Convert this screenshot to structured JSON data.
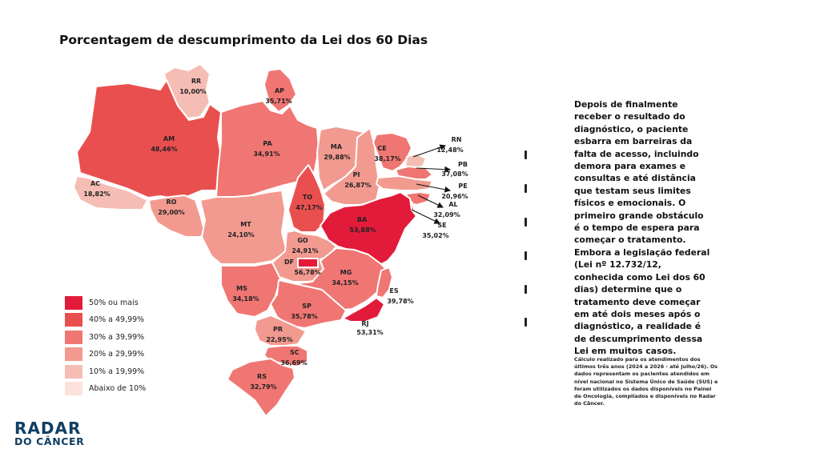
{
  "title": "Porcentagem de descumprimento da Lei dos 60 Dias",
  "colors": {
    "cat50": "#e31b3b",
    "cat40": "#ea4f4f",
    "cat30": "#ef7672",
    "cat20": "#f29a90",
    "cat10": "#f6bdb5",
    "cat0": "#fbe2dd"
  },
  "legend": [
    {
      "label": "50% ou mais",
      "color": "#e31b3b"
    },
    {
      "label": "40% a 49,99%",
      "color": "#ea4f4f"
    },
    {
      "label": "30% a 39,99%",
      "color": "#ef7672"
    },
    {
      "label": "20% a 29,99%",
      "color": "#f29a90"
    },
    {
      "label": "10% a 19,99%",
      "color": "#f6bdb5"
    },
    {
      "label": "Abaixo de 10%",
      "color": "#fbe2dd"
    }
  ],
  "states": [
    {
      "code": "RR",
      "value": "10,00%",
      "color": "#f6bdb5"
    },
    {
      "code": "AP",
      "value": "35,71%",
      "color": "#ef7672"
    },
    {
      "code": "AM",
      "value": "48,46%",
      "color": "#ea4f4f"
    },
    {
      "code": "PA",
      "value": "34,91%",
      "color": "#ef7672"
    },
    {
      "code": "AC",
      "value": "18,82%",
      "color": "#f6bdb5"
    },
    {
      "code": "RO",
      "value": "29,00%",
      "color": "#f29a90"
    },
    {
      "code": "MT",
      "value": "24,10%",
      "color": "#f29a90"
    },
    {
      "code": "TO",
      "value": "47,17%",
      "color": "#ea4f4f"
    },
    {
      "code": "MA",
      "value": "29,88%",
      "color": "#f29a90"
    },
    {
      "code": "PI",
      "value": "26,87%",
      "color": "#f29a90"
    },
    {
      "code": "CE",
      "value": "38,17%",
      "color": "#ef7672"
    },
    {
      "code": "RN",
      "value": "12,48%",
      "color": "#f6bdb5"
    },
    {
      "code": "PB",
      "value": "37,08%",
      "color": "#ef7672"
    },
    {
      "code": "PE",
      "value": "20,96%",
      "color": "#f29a90"
    },
    {
      "code": "AL",
      "value": "32,09%",
      "color": "#ef7672"
    },
    {
      "code": "SE",
      "value": "35,02%",
      "color": "#ef7672"
    },
    {
      "code": "BA",
      "value": "53,88%",
      "color": "#e31b3b"
    },
    {
      "code": "GO",
      "value": "24,91%",
      "color": "#f29a90"
    },
    {
      "code": "DF",
      "value": "56,78%",
      "color": "#e31b3b"
    },
    {
      "code": "MG",
      "value": "34,15%",
      "color": "#ef7672"
    },
    {
      "code": "ES",
      "value": "39,78%",
      "color": "#ef7672"
    },
    {
      "code": "RJ",
      "value": "53,31%",
      "color": "#e31b3b"
    },
    {
      "code": "MS",
      "value": "34,18%",
      "color": "#ef7672"
    },
    {
      "code": "SP",
      "value": "35,78%",
      "color": "#ef7672"
    },
    {
      "code": "PR",
      "value": "22,95%",
      "color": "#f29a90"
    },
    {
      "code": "SC",
      "value": "36,69%",
      "color": "#ef7672"
    },
    {
      "code": "RS",
      "value": "32,79%",
      "color": "#ef7672"
    }
  ],
  "body_text": "Depois de finalmente receber o resultado do diagnóstico, o paciente esbarra em barreiras da falta de acesso, incluindo demora para exames e consultas e até distância que testam seus limites físicos e emocionais. O primeiro grande obstáculo é o tempo de espera para começar o tratamento. Embora a legislação federal (Lei nº 12.732/12, conhecida como Lei dos 60 dias) determine que o tratamento deve começar em até dois meses após o diagnóstico, a realidade é de descumprimento dessa Lei em muitos casos.",
  "footnote": "Cálculo realizado para os atendimentos dos últimos três anos (2024 a 2026 - até julho/26). Os dados representam os pacientes atendidos em nível nacional no Sistema Único de Saúde (SUS) e foram utilizados os dados disponíveis no Painel de Oncologia, compilados e disponíveis no Radar do Câncer.",
  "logo": {
    "line1": "RADAR",
    "line2": "DO CÂNCER"
  }
}
